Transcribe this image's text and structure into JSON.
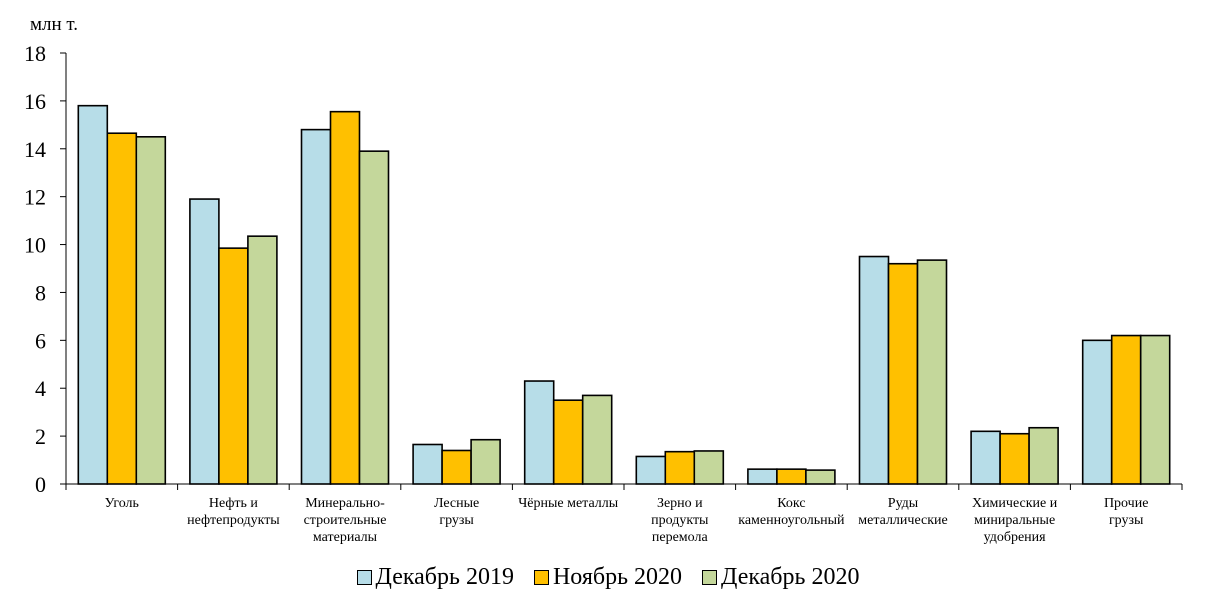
{
  "chart_data": {
    "type": "bar",
    "ylabel": "млн т.",
    "ylim": [
      0,
      18
    ],
    "yticks": [
      0,
      2,
      4,
      6,
      8,
      10,
      12,
      14,
      16,
      18
    ],
    "grid": false,
    "legend_position": "bottom",
    "categories": [
      [
        "Уголь"
      ],
      [
        "Нефть и",
        "нефтепродукты"
      ],
      [
        "Минерально-",
        "строительные",
        "материалы"
      ],
      [
        "Лесные",
        "грузы"
      ],
      [
        "Чёрные металлы"
      ],
      [
        "Зерно и",
        "продукты",
        "перемола"
      ],
      [
        "Кокс",
        "каменноугольный"
      ],
      [
        "Руды",
        "металлические"
      ],
      [
        "Химические и",
        "миниральные",
        "удобрения"
      ],
      [
        "Прочие",
        "грузы"
      ]
    ],
    "series": [
      {
        "name": "Декабрь 2019",
        "color": "#b7dde8",
        "values": [
          15.8,
          11.9,
          14.8,
          1.65,
          4.3,
          1.15,
          0.62,
          9.5,
          2.2,
          6.0
        ]
      },
      {
        "name": "Ноябрь 2020",
        "color": "#ffc000",
        "values": [
          14.65,
          9.85,
          15.55,
          1.4,
          3.5,
          1.35,
          0.62,
          9.2,
          2.1,
          6.2
        ]
      },
      {
        "name": "Декабрь 2020",
        "color": "#c4d79b",
        "values": [
          14.5,
          10.35,
          13.9,
          1.85,
          3.7,
          1.38,
          0.58,
          9.35,
          2.35,
          6.2
        ]
      }
    ]
  }
}
